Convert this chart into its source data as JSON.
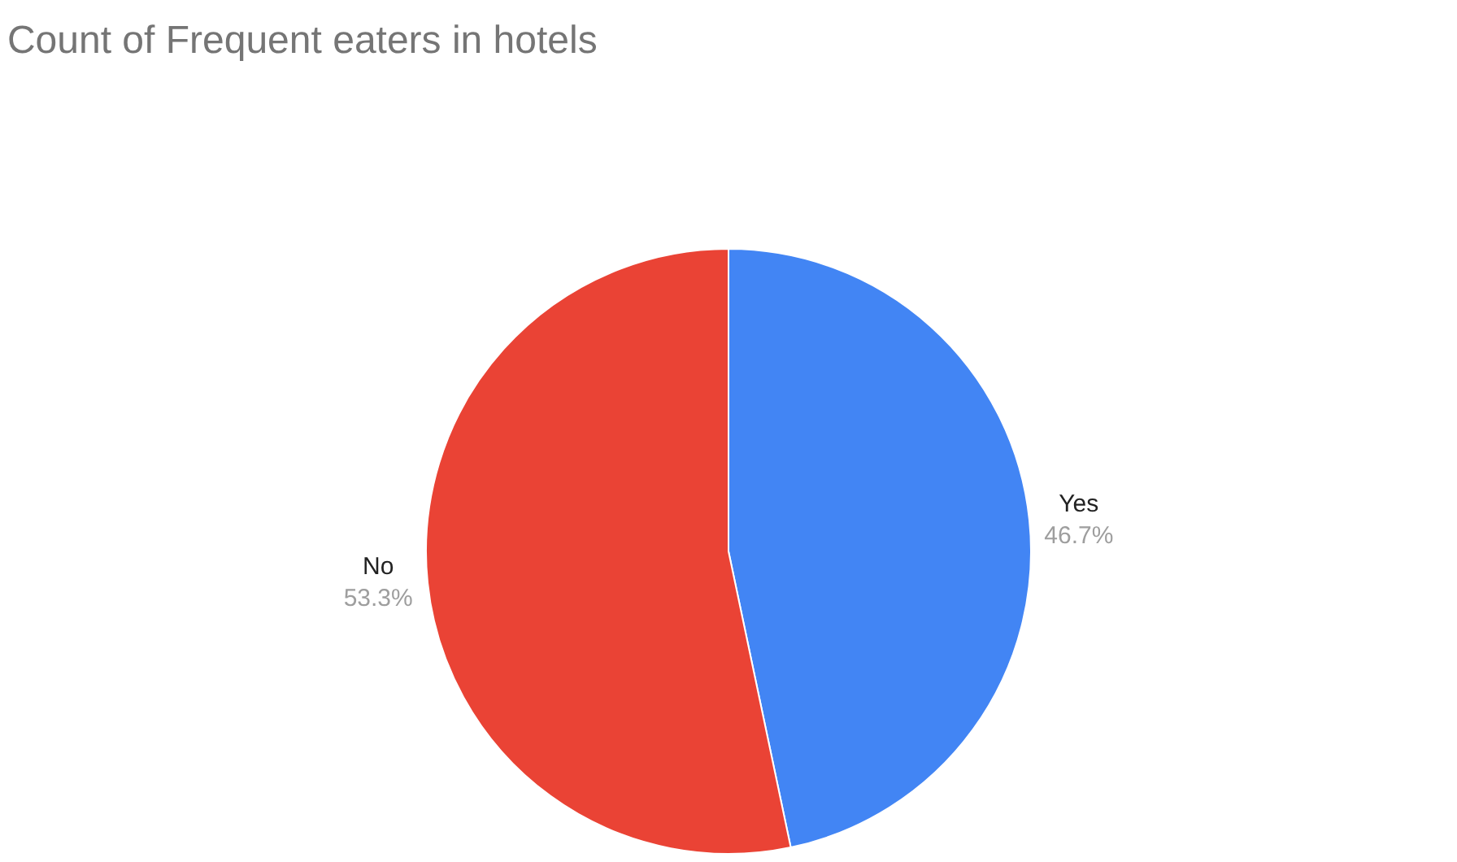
{
  "chart_data": {
    "type": "pie",
    "title": "Count of Frequent eaters in hotels",
    "categories": [
      "Yes",
      "No"
    ],
    "values": [
      46.7,
      53.3
    ],
    "colors": [
      "#4285f4",
      "#ea4335"
    ],
    "value_labels": [
      "46.7%",
      "53.3%"
    ],
    "legend": false
  }
}
